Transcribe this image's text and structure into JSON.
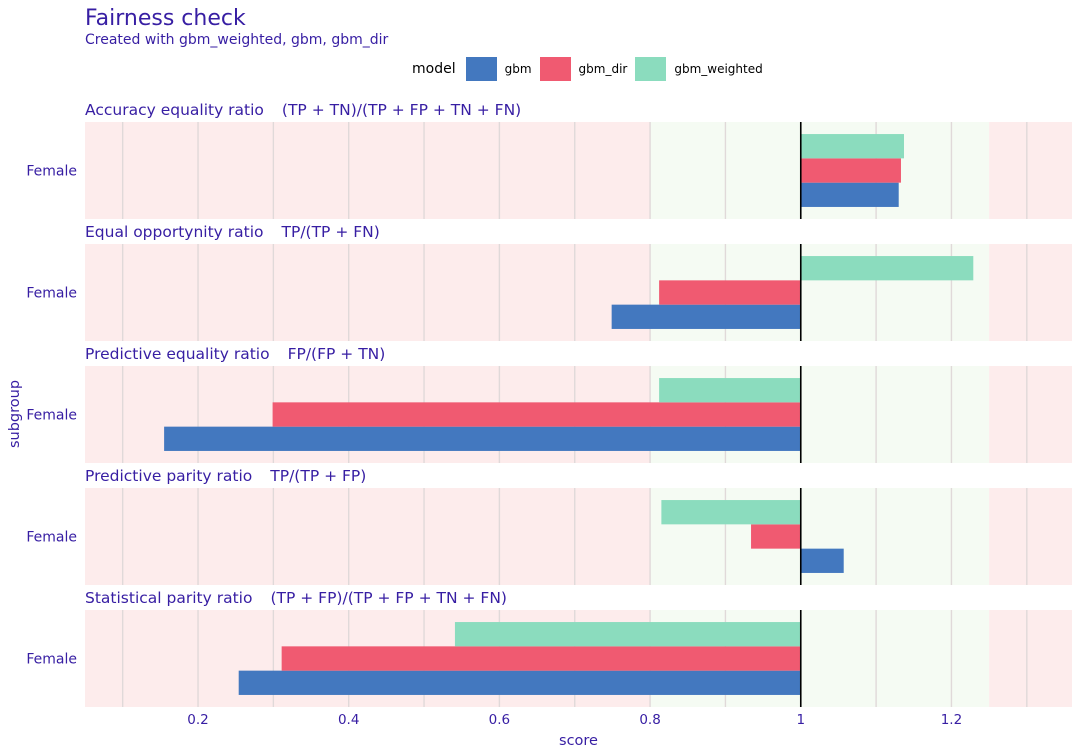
{
  "title": "Fairness check",
  "subtitle": "Created with gbm_weighted, gbm, gbm_dir",
  "legend": {
    "title": "model",
    "entries": [
      {
        "label": "gbm",
        "color": "#4378bf"
      },
      {
        "label": "gbm_dir",
        "color": "#f05a71"
      },
      {
        "label": "gbm_weighted",
        "color": "#8bdcbe"
      }
    ]
  },
  "colors": {
    "text": "#371ea3",
    "red_zone": "#fdecec",
    "green_zone": "#f5fbf3",
    "grid": "#e0d9d9",
    "reference_line": "#000000"
  },
  "chart_data": {
    "type": "bar",
    "orientation": "horizontal",
    "xlabel": "score",
    "ylabel": "subgroup",
    "xlim": [
      0.05,
      1.36
    ],
    "xticks": [
      0.2,
      0.4,
      0.6,
      0.8,
      1.0,
      1.2
    ],
    "xtick_labels": [
      "0.2",
      "0.4",
      "0.6",
      "0.8",
      "1",
      "1.2"
    ],
    "reference_value": 1,
    "acceptable_range": [
      0.8,
      1.25
    ],
    "grid": true,
    "legend_position": "top",
    "panels": [
      {
        "label": "Accuracy equality ratio",
        "formula": "(TP + TN)/(TP + FP + TN + FN)",
        "category": "Female",
        "series": [
          {
            "name": "gbm",
            "value": 1.13
          },
          {
            "name": "gbm_dir",
            "value": 1.133
          },
          {
            "name": "gbm_weighted",
            "value": 1.137
          }
        ]
      },
      {
        "label": "Equal opportynity ratio",
        "formula": "TP/(TP + FN)",
        "category": "Female",
        "series": [
          {
            "name": "gbm",
            "value": 0.749
          },
          {
            "name": "gbm_dir",
            "value": 0.812
          },
          {
            "name": "gbm_weighted",
            "value": 1.229
          }
        ]
      },
      {
        "label": "Predictive equality ratio",
        "formula": "FP/(FP + TN)",
        "category": "Female",
        "series": [
          {
            "name": "gbm",
            "value": 0.155
          },
          {
            "name": "gbm_dir",
            "value": 0.299
          },
          {
            "name": "gbm_weighted",
            "value": 0.812
          }
        ]
      },
      {
        "label": "Predictive parity ratio",
        "formula": "TP/(TP + FP)",
        "category": "Female",
        "series": [
          {
            "name": "gbm",
            "value": 1.057
          },
          {
            "name": "gbm_dir",
            "value": 0.934
          },
          {
            "name": "gbm_weighted",
            "value": 0.815
          }
        ]
      },
      {
        "label": "Statistical parity ratio",
        "formula": "(TP + FP)/(TP + FP + TN + FN)",
        "category": "Female",
        "series": [
          {
            "name": "gbm",
            "value": 0.254
          },
          {
            "name": "gbm_dir",
            "value": 0.311
          },
          {
            "name": "gbm_weighted",
            "value": 0.541
          }
        ]
      }
    ]
  }
}
